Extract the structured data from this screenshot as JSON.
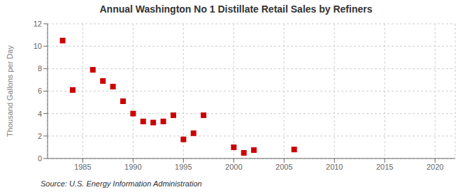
{
  "chart_data": {
    "type": "scatter",
    "title": "Annual Washington No 1 Distillate Retail Sales by Refiners",
    "ylabel": "Thousand Gallons per Day",
    "annotations": [
      "Source: U.S. Energy Information Administration"
    ],
    "x": [
      1983,
      1984,
      1986,
      1987,
      1988,
      1989,
      1990,
      1991,
      1992,
      1993,
      1994,
      1995,
      1996,
      1997,
      2000,
      2001,
      2002,
      2006
    ],
    "values": [
      10.5,
      6.1,
      7.9,
      6.9,
      6.4,
      5.1,
      4.0,
      3.3,
      3.2,
      3.3,
      3.85,
      1.7,
      2.25,
      3.85,
      1.0,
      0.5,
      0.75,
      0.8
    ],
    "color": "#cc0000",
    "marker": "square",
    "xlim": [
      1981.5,
      2022
    ],
    "ylim": [
      0,
      12
    ],
    "xticks": [
      1985,
      1990,
      1995,
      2000,
      2005,
      2010,
      2015,
      2020
    ],
    "yticks": [
      0,
      2,
      4,
      6,
      8,
      10,
      12
    ],
    "grid": true
  }
}
